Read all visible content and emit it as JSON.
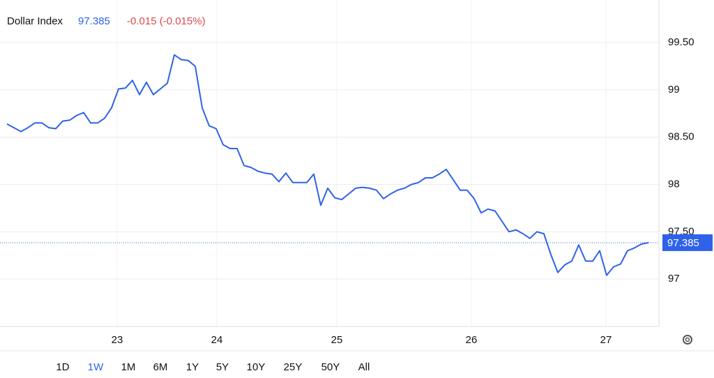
{
  "chart_data": {
    "type": "line",
    "title": "Dollar Index",
    "last_value": 97.385,
    "change": "-0.015 (-0.015%)",
    "x": [
      1,
      2,
      3,
      4,
      5,
      6,
      7,
      8,
      9,
      10,
      11,
      12,
      13,
      14,
      15,
      16,
      17,
      18,
      19,
      20,
      21,
      22,
      23,
      24,
      25,
      26,
      27,
      28,
      29,
      30,
      31,
      32,
      33,
      34,
      35,
      36,
      37,
      38,
      39,
      40,
      41,
      42,
      43,
      44,
      45,
      46,
      47,
      48,
      49,
      50,
      51,
      52,
      53,
      54,
      55,
      56,
      57,
      58,
      59,
      60,
      61,
      62,
      63,
      64,
      65,
      66,
      67,
      68,
      69,
      70,
      71,
      72,
      73,
      74,
      75,
      76,
      77,
      78,
      79,
      80,
      81,
      82,
      83,
      84,
      85,
      86,
      87,
      88,
      89,
      90,
      91,
      92,
      93
    ],
    "series": [
      {
        "name": "Dollar Index",
        "color": "#2f62e8",
        "values": [
          98.64,
          98.6,
          98.56,
          98.6,
          98.65,
          98.65,
          98.6,
          98.59,
          98.67,
          98.68,
          98.73,
          98.76,
          98.65,
          98.65,
          98.7,
          98.81,
          99.01,
          99.02,
          99.1,
          98.95,
          99.08,
          98.95,
          99.01,
          99.07,
          99.37,
          99.32,
          99.31,
          99.25,
          98.81,
          98.62,
          98.59,
          98.42,
          98.38,
          98.38,
          98.2,
          98.18,
          98.14,
          98.12,
          98.11,
          98.03,
          98.12,
          98.02,
          98.02,
          98.02,
          98.11,
          97.78,
          97.96,
          97.86,
          97.84,
          97.9,
          97.96,
          97.97,
          97.96,
          97.94,
          97.85,
          97.9,
          97.94,
          97.96,
          98.0,
          98.02,
          98.07,
          98.07,
          98.11,
          98.16,
          98.05,
          97.94,
          97.94,
          97.85,
          97.7,
          97.74,
          97.72,
          97.61,
          97.5,
          97.52,
          97.48,
          97.43,
          97.5,
          97.48,
          97.26,
          97.07,
          97.15,
          97.19,
          97.36,
          97.19,
          97.19,
          97.3,
          97.04,
          97.13,
          97.16,
          97.3,
          97.33,
          97.37,
          97.385
        ]
      }
    ],
    "xlim": [
      0,
      94.5
    ],
    "xticks": [
      {
        "value": 16.8,
        "label": "23"
      },
      {
        "value": 31.1,
        "label": "24"
      },
      {
        "value": 48.3,
        "label": "25"
      },
      {
        "value": 67.6,
        "label": "26"
      },
      {
        "value": 86.9,
        "label": "27"
      }
    ],
    "ylim": [
      96.5,
      99.95
    ],
    "yticks": [
      97,
      {
        "value": 97.5,
        "label": "97.50"
      },
      98,
      {
        "value": 98.5,
        "label": "98.50"
      },
      99,
      {
        "value": 99.5,
        "label": "99.50"
      }
    ],
    "grid": true,
    "ranges": [
      "1D",
      "1W",
      "1M",
      "6M",
      "1Y",
      "5Y",
      "10Y",
      "25Y",
      "50Y",
      "All"
    ],
    "selected_range": 1
  }
}
